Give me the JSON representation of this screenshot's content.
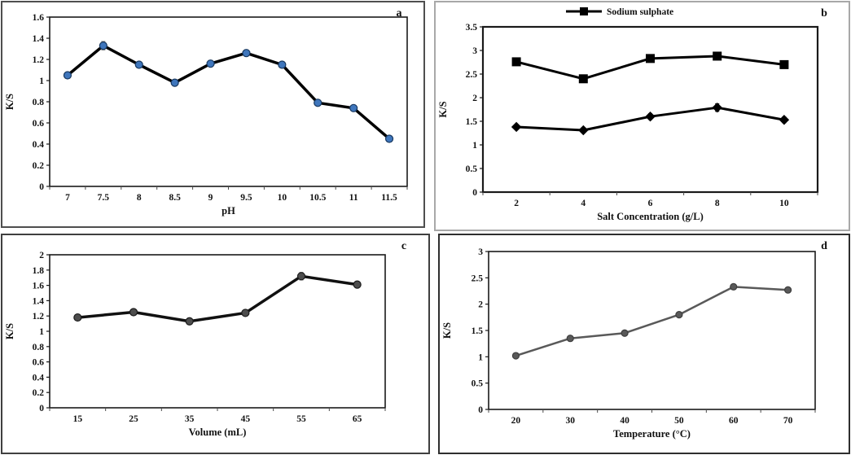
{
  "figure": {
    "description": "Four-panel K/S line charts",
    "panel_labels": [
      "a",
      "b",
      "c",
      "d"
    ]
  },
  "chart_data": [
    {
      "id": "a",
      "type": "line",
      "panel_label": "a",
      "panel_label_color": "#33425e",
      "title": "",
      "xlabel": "pH",
      "ylabel": "K/S",
      "ylim": [
        0,
        1.6
      ],
      "ytick_step": 0.2,
      "grid": false,
      "legend": null,
      "categories": [
        "7",
        "7.5",
        "8",
        "8.5",
        "9",
        "9.5",
        "10",
        "10.5",
        "11",
        "11.5"
      ],
      "series": [
        {
          "values": [
            1.05,
            1.33,
            1.15,
            0.98,
            1.16,
            1.26,
            1.15,
            0.79,
            0.74,
            0.45
          ],
          "err": [
            0.02,
            0.04,
            0.02,
            0.02,
            0.03,
            0.03,
            0.03,
            0.02,
            0.02,
            0.02
          ],
          "marker": "circle",
          "marker_size": 4.5,
          "marker_fill": "#3f76bc",
          "marker_stroke": "#17375e",
          "line_color": "#000000",
          "line_width": 3.5,
          "err_color": "#7f7f7f"
        }
      ]
    },
    {
      "id": "b",
      "type": "line",
      "panel_label": "b",
      "panel_label_color": "#2a5fb8",
      "title": "",
      "xlabel": "Salt Concentration (g/L)",
      "ylabel": "K/S",
      "ylim": [
        0,
        3.5
      ],
      "ytick_step": 0.5,
      "grid": false,
      "legend": {
        "label": "Sodium sulphate",
        "marker": "square"
      },
      "categories": [
        "2",
        "4",
        "6",
        "8",
        "10"
      ],
      "series": [
        {
          "values": [
            2.76,
            2.4,
            2.83,
            2.88,
            2.7
          ],
          "err": [
            0.03,
            0.05,
            0.04,
            0.04,
            0.03
          ],
          "marker": "square",
          "marker_size": 5,
          "marker_fill": "#000000",
          "marker_stroke": "#000000",
          "line_color": "#000000",
          "line_width": 3,
          "err_color": "#000000"
        },
        {
          "values": [
            1.38,
            1.31,
            1.6,
            1.79,
            1.53
          ],
          "err": [
            0.05,
            0.05,
            0.06,
            0.08,
            0.06
          ],
          "marker": "diamond",
          "marker_size": 5.5,
          "marker_fill": "#000000",
          "marker_stroke": "#000000",
          "line_color": "#000000",
          "line_width": 3,
          "err_color": "#000000"
        }
      ]
    },
    {
      "id": "c",
      "type": "line",
      "panel_label": "c",
      "panel_label_color": "#2a5fb8",
      "title": "",
      "xlabel": "Volume (mL)",
      "ylabel": "K/S",
      "ylim": [
        0,
        2
      ],
      "ytick_step": 0.2,
      "grid": false,
      "legend": null,
      "categories": [
        "15",
        "25",
        "35",
        "45",
        "55",
        "65"
      ],
      "series": [
        {
          "values": [
            1.18,
            1.25,
            1.13,
            1.24,
            1.72,
            1.61
          ],
          "err": [
            0.02,
            0.03,
            0.02,
            0.03,
            0.05,
            0.03
          ],
          "marker": "circle",
          "marker_size": 4.5,
          "marker_fill": "#4d4d4d",
          "marker_stroke": "#1a1a1a",
          "line_color": "#111111",
          "line_width": 3.5,
          "err_color": "#7f7f7f"
        }
      ]
    },
    {
      "id": "d",
      "type": "line",
      "panel_label": "d",
      "panel_label_color": "#23252b",
      "title": "",
      "xlabel": "Temperature (°C)",
      "ylabel": "K/S",
      "ylim": [
        0,
        3
      ],
      "ytick_step": 0.5,
      "grid": false,
      "legend": null,
      "categories": [
        "20",
        "30",
        "40",
        "50",
        "60",
        "70"
      ],
      "series": [
        {
          "values": [
            1.02,
            1.35,
            1.45,
            1.8,
            2.33,
            2.27
          ],
          "err": [
            0.02,
            0.02,
            0.02,
            0.05,
            0.05,
            0.04
          ],
          "marker": "circle",
          "marker_size": 4,
          "marker_fill": "#595959",
          "marker_stroke": "#3d3d3d",
          "line_color": "#595959",
          "line_width": 2.5,
          "err_color": "#6e6e6e"
        }
      ]
    }
  ]
}
